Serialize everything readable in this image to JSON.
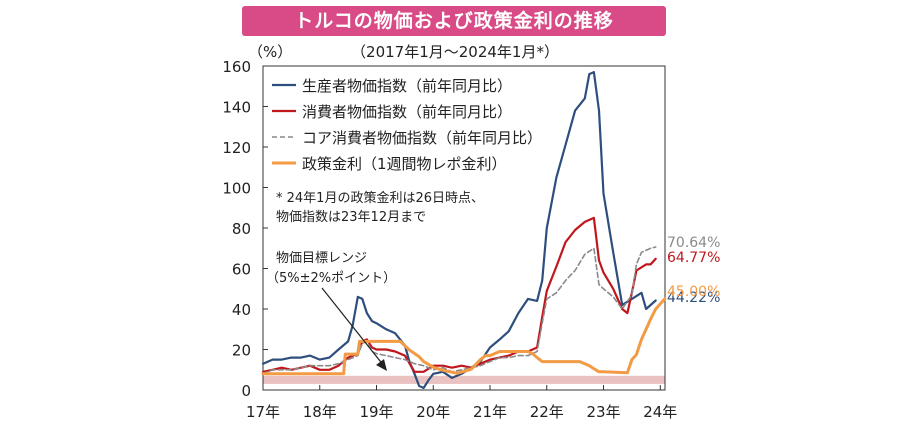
{
  "title": "トルコの物価および政策金利の推移",
  "chart_data": {
    "type": "line",
    "subtitle": "（2017年1月～2024年1月*）",
    "ylabel": "（%）",
    "ylim": [
      0,
      160
    ],
    "yticks": [
      0,
      20,
      40,
      60,
      80,
      100,
      120,
      140,
      160
    ],
    "xlim": [
      2017.0,
      2024.0833
    ],
    "xticks": [
      {
        "value": 2017,
        "label": "17年"
      },
      {
        "value": 2018,
        "label": "18年"
      },
      {
        "value": 2019,
        "label": "19年"
      },
      {
        "value": 2020,
        "label": "20年"
      },
      {
        "value": 2021,
        "label": "21年"
      },
      {
        "value": 2022,
        "label": "22年"
      },
      {
        "value": 2023,
        "label": "23年"
      },
      {
        "value": 2024,
        "label": "24年"
      }
    ],
    "grid": false,
    "legend_position": "top-left",
    "target_band": {
      "low": 3,
      "high": 7,
      "color": "#e8b7b7"
    },
    "series": [
      {
        "name": "生産者物価指数（前年同月比）",
        "color": "#2e4f7e",
        "dash": "",
        "width": 2.2,
        "end_label": "44.22%",
        "points": [
          [
            2017.0,
            13
          ],
          [
            2017.17,
            15
          ],
          [
            2017.33,
            15
          ],
          [
            2017.5,
            16
          ],
          [
            2017.67,
            16
          ],
          [
            2017.83,
            17
          ],
          [
            2018.0,
            15
          ],
          [
            2018.17,
            16
          ],
          [
            2018.33,
            20
          ],
          [
            2018.5,
            24
          ],
          [
            2018.58,
            32
          ],
          [
            2018.67,
            46
          ],
          [
            2018.75,
            45
          ],
          [
            2018.83,
            38
          ],
          [
            2018.92,
            34
          ],
          [
            2019.0,
            33
          ],
          [
            2019.17,
            30
          ],
          [
            2019.33,
            28
          ],
          [
            2019.5,
            22
          ],
          [
            2019.58,
            14
          ],
          [
            2019.67,
            8
          ],
          [
            2019.75,
            2
          ],
          [
            2019.83,
            1
          ],
          [
            2019.92,
            5
          ],
          [
            2020.0,
            8
          ],
          [
            2020.17,
            9
          ],
          [
            2020.33,
            6
          ],
          [
            2020.5,
            8
          ],
          [
            2020.67,
            11
          ],
          [
            2020.83,
            14
          ],
          [
            2021.0,
            21
          ],
          [
            2021.17,
            25
          ],
          [
            2021.33,
            29
          ],
          [
            2021.5,
            38
          ],
          [
            2021.67,
            45
          ],
          [
            2021.83,
            44
          ],
          [
            2021.92,
            54
          ],
          [
            2022.0,
            80
          ],
          [
            2022.17,
            105
          ],
          [
            2022.33,
            121
          ],
          [
            2022.5,
            138
          ],
          [
            2022.67,
            144
          ],
          [
            2022.75,
            156
          ],
          [
            2022.83,
            157
          ],
          [
            2022.92,
            138
          ],
          [
            2023.0,
            97
          ],
          [
            2023.17,
            68
          ],
          [
            2023.33,
            42
          ],
          [
            2023.5,
            45
          ],
          [
            2023.67,
            48
          ],
          [
            2023.75,
            40
          ],
          [
            2023.92,
            44.22
          ]
        ]
      },
      {
        "name": "消費者物価指数（前年同月比）",
        "color": "#c0171c",
        "dash": "",
        "width": 2.2,
        "end_label": "64.77%",
        "points": [
          [
            2017.0,
            9
          ],
          [
            2017.17,
            10
          ],
          [
            2017.33,
            11
          ],
          [
            2017.5,
            10
          ],
          [
            2017.67,
            11
          ],
          [
            2017.83,
            12
          ],
          [
            2018.0,
            10
          ],
          [
            2018.17,
            10
          ],
          [
            2018.33,
            12
          ],
          [
            2018.5,
            16
          ],
          [
            2018.67,
            18
          ],
          [
            2018.75,
            24
          ],
          [
            2018.83,
            25
          ],
          [
            2018.92,
            21
          ],
          [
            2019.0,
            20
          ],
          [
            2019.17,
            20
          ],
          [
            2019.33,
            19
          ],
          [
            2019.5,
            17
          ],
          [
            2019.67,
            9
          ],
          [
            2019.83,
            9
          ],
          [
            2020.0,
            12
          ],
          [
            2020.17,
            12
          ],
          [
            2020.33,
            11
          ],
          [
            2020.5,
            12
          ],
          [
            2020.67,
            11
          ],
          [
            2020.83,
            13
          ],
          [
            2021.0,
            15
          ],
          [
            2021.17,
            16
          ],
          [
            2021.33,
            17
          ],
          [
            2021.5,
            19
          ],
          [
            2021.67,
            19
          ],
          [
            2021.83,
            21
          ],
          [
            2021.92,
            36
          ],
          [
            2022.0,
            49
          ],
          [
            2022.17,
            61
          ],
          [
            2022.33,
            73
          ],
          [
            2022.5,
            79
          ],
          [
            2022.67,
            83
          ],
          [
            2022.83,
            85
          ],
          [
            2022.92,
            64
          ],
          [
            2023.0,
            58
          ],
          [
            2023.17,
            50
          ],
          [
            2023.33,
            40
          ],
          [
            2023.42,
            38
          ],
          [
            2023.5,
            48
          ],
          [
            2023.58,
            59
          ],
          [
            2023.75,
            62
          ],
          [
            2023.83,
            62
          ],
          [
            2023.92,
            64.77
          ]
        ]
      },
      {
        "name": "コア消費者物価指数（前年同月比）",
        "color": "#8a8a8a",
        "dash": "5,3",
        "width": 1.6,
        "end_label": "70.64%",
        "points": [
          [
            2017.0,
            8
          ],
          [
            2017.17,
            10
          ],
          [
            2017.33,
            10
          ],
          [
            2017.5,
            10
          ],
          [
            2017.67,
            11
          ],
          [
            2017.83,
            12
          ],
          [
            2018.0,
            12
          ],
          [
            2018.17,
            12
          ],
          [
            2018.33,
            13
          ],
          [
            2018.5,
            15
          ],
          [
            2018.67,
            17
          ],
          [
            2018.75,
            23
          ],
          [
            2018.83,
            24
          ],
          [
            2018.92,
            19
          ],
          [
            2019.0,
            18
          ],
          [
            2019.17,
            17
          ],
          [
            2019.33,
            16
          ],
          [
            2019.5,
            15
          ],
          [
            2019.67,
            13
          ],
          [
            2019.83,
            12
          ],
          [
            2020.0,
            10
          ],
          [
            2020.17,
            11
          ],
          [
            2020.33,
            9
          ],
          [
            2020.5,
            10
          ],
          [
            2020.67,
            11
          ],
          [
            2020.83,
            12
          ],
          [
            2021.0,
            14
          ],
          [
            2021.17,
            16
          ],
          [
            2021.33,
            16
          ],
          [
            2021.5,
            17
          ],
          [
            2021.67,
            17
          ],
          [
            2021.83,
            19
          ],
          [
            2021.92,
            33
          ],
          [
            2022.0,
            45
          ],
          [
            2022.17,
            48
          ],
          [
            2022.33,
            54
          ],
          [
            2022.5,
            59
          ],
          [
            2022.67,
            67
          ],
          [
            2022.83,
            70
          ],
          [
            2022.92,
            52
          ],
          [
            2023.0,
            50
          ],
          [
            2023.17,
            46
          ],
          [
            2023.33,
            40
          ],
          [
            2023.5,
            47
          ],
          [
            2023.58,
            62
          ],
          [
            2023.67,
            68
          ],
          [
            2023.83,
            70
          ],
          [
            2023.92,
            70.64
          ]
        ]
      },
      {
        "name": "政策金利（1週間物レポ金利）",
        "color": "#f39a45",
        "dash": "",
        "width": 3.0,
        "end_label": "45.00%",
        "points": [
          [
            2017.0,
            8
          ],
          [
            2017.75,
            8
          ],
          [
            2018.25,
            8
          ],
          [
            2018.42,
            8
          ],
          [
            2018.45,
            17.75
          ],
          [
            2018.67,
            17.75
          ],
          [
            2018.7,
            24
          ],
          [
            2019.42,
            24
          ],
          [
            2019.58,
            19.75
          ],
          [
            2019.75,
            16.5
          ],
          [
            2019.83,
            14
          ],
          [
            2020.0,
            11.25
          ],
          [
            2020.17,
            9.75
          ],
          [
            2020.42,
            8.25
          ],
          [
            2020.67,
            10.25
          ],
          [
            2020.83,
            15
          ],
          [
            2020.92,
            17
          ],
          [
            2021.0,
            17
          ],
          [
            2021.17,
            19
          ],
          [
            2021.67,
            19
          ],
          [
            2021.75,
            18
          ],
          [
            2021.83,
            16
          ],
          [
            2021.92,
            14
          ],
          [
            2022.0,
            14
          ],
          [
            2022.58,
            14
          ],
          [
            2022.67,
            13
          ],
          [
            2022.75,
            12
          ],
          [
            2022.83,
            10.5
          ],
          [
            2022.92,
            9
          ],
          [
            2023.0,
            9
          ],
          [
            2023.42,
            8.5
          ],
          [
            2023.5,
            15
          ],
          [
            2023.58,
            17.5
          ],
          [
            2023.67,
            25
          ],
          [
            2023.75,
            30
          ],
          [
            2023.83,
            35
          ],
          [
            2023.92,
            40
          ],
          [
            2024.0,
            42.5
          ],
          [
            2024.08,
            45
          ]
        ]
      }
    ],
    "annotations": {
      "footnote_lines": [
        "*  24年1月の政策金利は26日時点、",
        "    物価指数は23年12月まで"
      ],
      "target_label_lines": [
        "物価目標レンジ",
        "（5%±2%ポイント）"
      ]
    }
  }
}
